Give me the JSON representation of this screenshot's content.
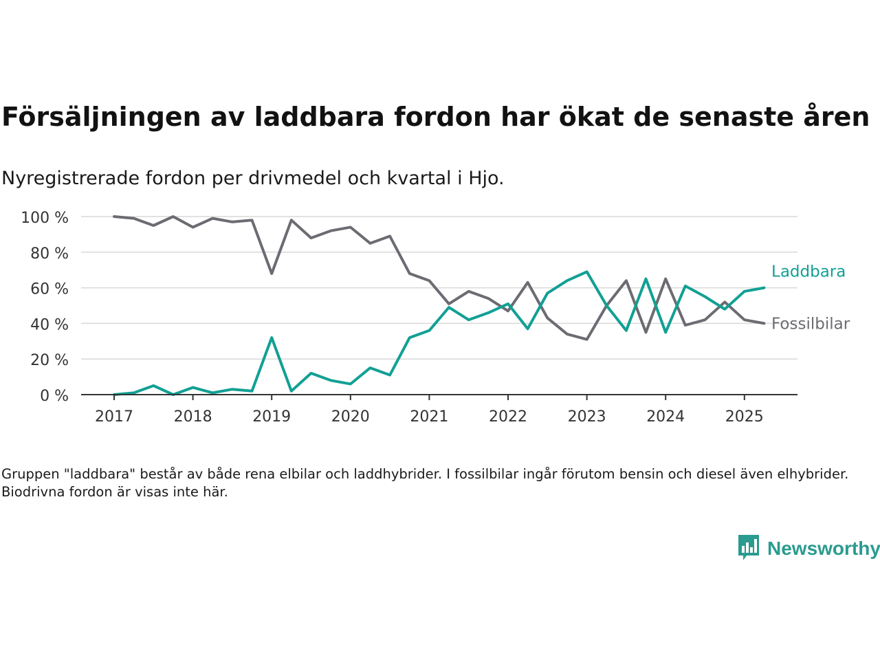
{
  "title": "Försäljningen av laddbara fordon har ökat de senaste åren",
  "subtitle": "Nyregistrerade fordon per drivmedel och kvartal i Hjo.",
  "note": "Gruppen \"laddbara\" består av både rena elbilar och laddhybrider. I fossilbilar ingår förutom bensin och diesel även elhybrider. Biodrivna fordon är visas inte här.",
  "brand": {
    "name": "Newsworthy",
    "icon": "newsworthy-logo-icon",
    "color": "#2a9b8f"
  },
  "chart_data": {
    "type": "line",
    "ylim": [
      0,
      100
    ],
    "yticks": [
      0,
      20,
      40,
      60,
      80,
      100
    ],
    "ytick_labels": [
      "0 %",
      "20 %",
      "40 %",
      "60 %",
      "80 %",
      "100 %"
    ],
    "xticks": [
      2017,
      2018,
      2019,
      2020,
      2021,
      2022,
      2023,
      2024,
      2025
    ],
    "x_start": "2017-Q1",
    "grid": true,
    "legend": "line-end labels",
    "x": [
      "2017-Q1",
      "2017-Q2",
      "2017-Q3",
      "2017-Q4",
      "2018-Q1",
      "2018-Q2",
      "2018-Q3",
      "2018-Q4",
      "2019-Q1",
      "2019-Q2",
      "2019-Q3",
      "2019-Q4",
      "2020-Q1",
      "2020-Q2",
      "2020-Q3",
      "2020-Q4",
      "2021-Q1",
      "2021-Q2",
      "2021-Q3",
      "2021-Q4",
      "2022-Q1",
      "2022-Q2",
      "2022-Q3",
      "2022-Q4",
      "2023-Q1",
      "2023-Q2",
      "2023-Q3",
      "2023-Q4",
      "2024-Q1",
      "2024-Q2",
      "2024-Q3",
      "2024-Q4",
      "2025-Q1",
      "2025-Q2"
    ],
    "series": [
      {
        "name": "Laddbara",
        "color": "#11a094",
        "values": [
          0,
          1,
          5,
          0,
          4,
          1,
          3,
          2,
          32,
          2,
          12,
          8,
          6,
          15,
          11,
          32,
          36,
          49,
          42,
          46,
          51,
          37,
          57,
          64,
          69,
          50,
          36,
          65,
          35,
          61,
          55,
          48,
          58,
          60
        ]
      },
      {
        "name": "Fossilbilar",
        "color": "#6d6b72",
        "values": [
          100,
          99,
          95,
          100,
          94,
          99,
          97,
          98,
          68,
          98,
          88,
          92,
          94,
          85,
          89,
          68,
          64,
          51,
          58,
          54,
          47,
          63,
          43,
          34,
          31,
          50,
          64,
          35,
          65,
          39,
          42,
          52,
          42,
          40
        ]
      }
    ]
  }
}
